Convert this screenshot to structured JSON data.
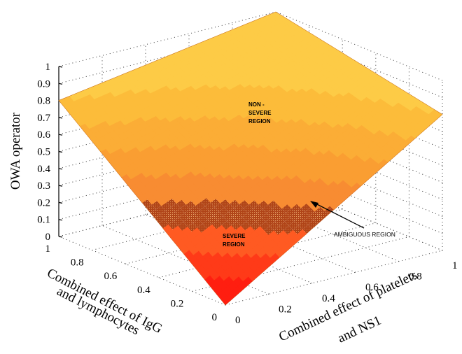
{
  "chart_data": {
    "type": "surface",
    "title": "",
    "zlabel": "OWA operator",
    "xlabel_lines": [
      "Combined effect of IgG",
      "and lymphocytes"
    ],
    "ylabel_lines": [
      "Combined effect of platelets",
      "and NS1"
    ],
    "zlim": [
      0,
      1
    ],
    "z_ticks": [
      "0",
      "0.1",
      "0.2",
      "0.3",
      "0.4",
      "0.5",
      "0.6",
      "0.7",
      "0.8",
      "0.9",
      "1"
    ],
    "x_ticks": [
      "0",
      "0.2",
      "0.4",
      "0.6",
      "0.8",
      "1"
    ],
    "y_ticks": [
      "0",
      "0.2",
      "0.4",
      "0.6",
      "0.8",
      "1"
    ],
    "corner_values": [
      {
        "igg_lymphocytes": 0,
        "platelets_ns1": 0,
        "owa": 0.0
      },
      {
        "igg_lymphocytes": 1,
        "platelets_ns1": 0,
        "owa": 0.8
      },
      {
        "igg_lymphocytes": 0,
        "platelets_ns1": 1,
        "owa": 0.8
      },
      {
        "igg_lymphocytes": 1,
        "platelets_ns1": 1,
        "owa": 1.0
      }
    ],
    "color_bands": [
      {
        "from": 0.0,
        "to": 0.1,
        "color": "#ff1e10"
      },
      {
        "from": 0.1,
        "to": 0.2,
        "color": "#ff3a18"
      },
      {
        "from": 0.2,
        "to": 0.3,
        "color": "#ff5a22"
      },
      {
        "from": 0.3,
        "to": 0.4,
        "color": "#b84a20"
      },
      {
        "from": 0.4,
        "to": 0.5,
        "color": "#f88c32"
      },
      {
        "from": 0.5,
        "to": 0.6,
        "color": "#fa9e32"
      },
      {
        "from": 0.6,
        "to": 0.7,
        "color": "#fbad36"
      },
      {
        "from": 0.7,
        "to": 0.8,
        "color": "#fcbc3a"
      },
      {
        "from": 0.8,
        "to": 1.0,
        "color": "#fdcb46"
      }
    ],
    "ambiguous_band": {
      "from": 0.3,
      "to": 0.4,
      "color": "#b84a20",
      "texture": "dotted"
    },
    "grid": true,
    "annotations": {
      "non_severe": [
        "NON -",
        "SEVERE",
        "REGION"
      ],
      "severe": [
        "SEVERE",
        "REGION"
      ],
      "ambiguous": "AMBIGUOUS REGION"
    }
  }
}
